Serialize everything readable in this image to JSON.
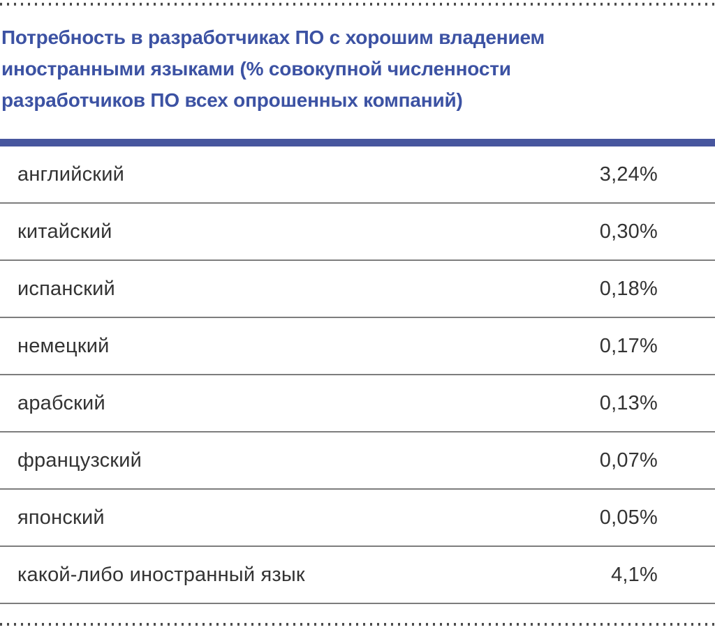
{
  "header": {
    "title": "Потребность в разработчиках ПО с хорошим владением иностранными языками (% совокупной численности разработчиков ПО всех опрошенных компаний)",
    "lines": [
      "Потребность в разработчиках ПО с хорошим владением",
      "иностранными языками (% совокупной численности",
      "разработчиков ПО всех опрошенных компаний)"
    ]
  },
  "colors": {
    "title_blue": "#3c52a3",
    "accent_bar_blue": "#47569e",
    "row_text": "#333333",
    "divider_gray": "#7d7d7d",
    "dot_gray": "#4d4d4d"
  },
  "table": {
    "rows": [
      {
        "label": "английский",
        "value": "3,24%"
      },
      {
        "label": "китайский",
        "value": "0,30%"
      },
      {
        "label": "испанский",
        "value": "0,18%"
      },
      {
        "label": "немецкий",
        "value": "0,17%"
      },
      {
        "label": "арабский",
        "value": "0,13%"
      },
      {
        "label": "французский",
        "value": "0,07%"
      },
      {
        "label": "японский",
        "value": "0,05%"
      },
      {
        "label": "какой-либо иностранный язык",
        "value": "4,1%"
      }
    ]
  },
  "chart_data": {
    "type": "table",
    "title": "Потребность в разработчиках ПО с хорошим владением иностранными языками (% совокупной численности разработчиков ПО всех опрошенных компаний)",
    "categories": [
      "английский",
      "китайский",
      "испанский",
      "немецкий",
      "арабский",
      "французский",
      "японский",
      "какой-либо иностранный язык"
    ],
    "values": [
      3.24,
      0.3,
      0.18,
      0.17,
      0.13,
      0.07,
      0.05,
      4.1
    ],
    "value_labels": [
      "3,24%",
      "0,30%",
      "0,18%",
      "0,17%",
      "0,13%",
      "0,07%",
      "0,05%",
      "4,1%"
    ],
    "unit": "%"
  }
}
